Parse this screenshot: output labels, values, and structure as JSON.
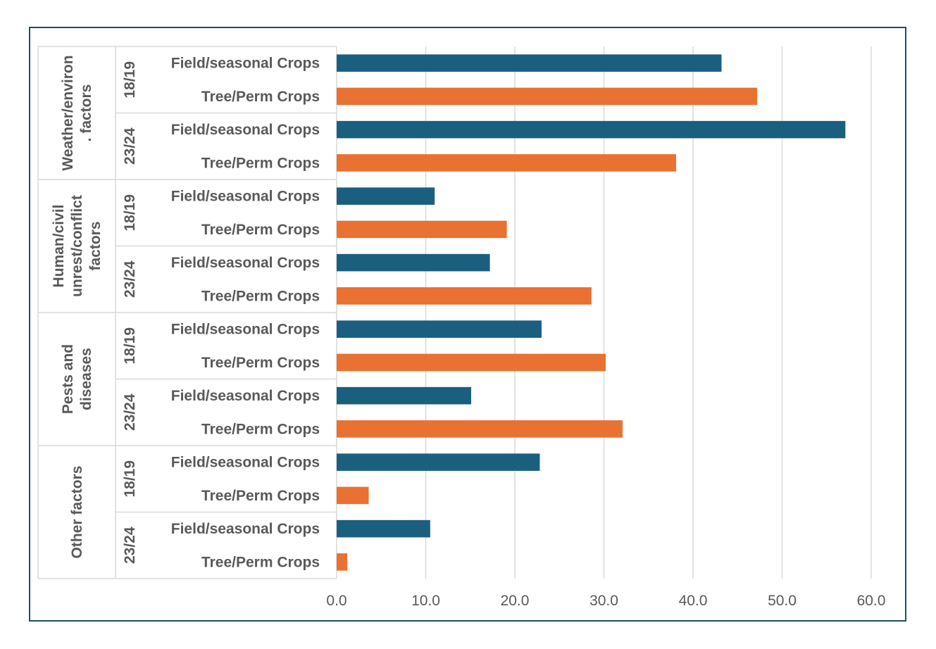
{
  "chart_data": {
    "type": "bar",
    "orientation": "horizontal",
    "grid": true,
    "xlim": [
      0,
      60
    ],
    "x_ticks": [
      "0.0",
      "10.0",
      "20.0",
      "30.0",
      "40.0",
      "50.0",
      "60.0"
    ],
    "groups": [
      {
        "label": "Weather/environ. factors",
        "label_lines": [
          "Weather/environ",
          ". factors"
        ],
        "periods": [
          {
            "label": "18/19",
            "bars": [
              {
                "category": "Field/seasonal Crops",
                "value": 43.2
              },
              {
                "category": "Tree/Perm Crops",
                "value": 47.2
              }
            ]
          },
          {
            "label": "23/24",
            "bars": [
              {
                "category": "Field/seasonal Crops",
                "value": 57.1
              },
              {
                "category": "Tree/Perm Crops",
                "value": 38.1
              }
            ]
          }
        ]
      },
      {
        "label": "Human/civil unrest/conflict factors",
        "label_lines": [
          "Human/civil",
          "unrest/conflict",
          "factors"
        ],
        "periods": [
          {
            "label": "18/19",
            "bars": [
              {
                "category": "Field/seasonal Crops",
                "value": 11.0
              },
              {
                "category": "Tree/Perm Crops",
                "value": 19.1
              }
            ]
          },
          {
            "label": "23/24",
            "bars": [
              {
                "category": "Field/seasonal Crops",
                "value": 17.2
              },
              {
                "category": "Tree/Perm Crops",
                "value": 28.6
              }
            ]
          }
        ]
      },
      {
        "label": "Pests and diseases",
        "label_lines": [
          "Pests and",
          "diseases"
        ],
        "periods": [
          {
            "label": "18/19",
            "bars": [
              {
                "category": "Field/seasonal Crops",
                "value": 23.0
              },
              {
                "category": "Tree/Perm Crops",
                "value": 30.2
              }
            ]
          },
          {
            "label": "23/24",
            "bars": [
              {
                "category": "Field/seasonal Crops",
                "value": 15.1
              },
              {
                "category": "Tree/Perm Crops",
                "value": 32.1
              }
            ]
          }
        ]
      },
      {
        "label": "Other factors",
        "label_lines": [
          "Other factors"
        ],
        "periods": [
          {
            "label": "18/19",
            "bars": [
              {
                "category": "Field/seasonal Crops",
                "value": 22.8
              },
              {
                "category": "Tree/Perm Crops",
                "value": 3.6
              }
            ]
          },
          {
            "label": "23/24",
            "bars": [
              {
                "category": "Field/seasonal Crops",
                "value": 10.5
              },
              {
                "category": "Tree/Perm Crops",
                "value": 1.2
              }
            ]
          }
        ]
      }
    ],
    "colors": {
      "Field/seasonal Crops": "#1a5f7e",
      "Tree/Perm Crops": "#e97132",
      "grid": "#d9d9d9",
      "frame": "#1f4e61",
      "text": "#595959"
    }
  }
}
